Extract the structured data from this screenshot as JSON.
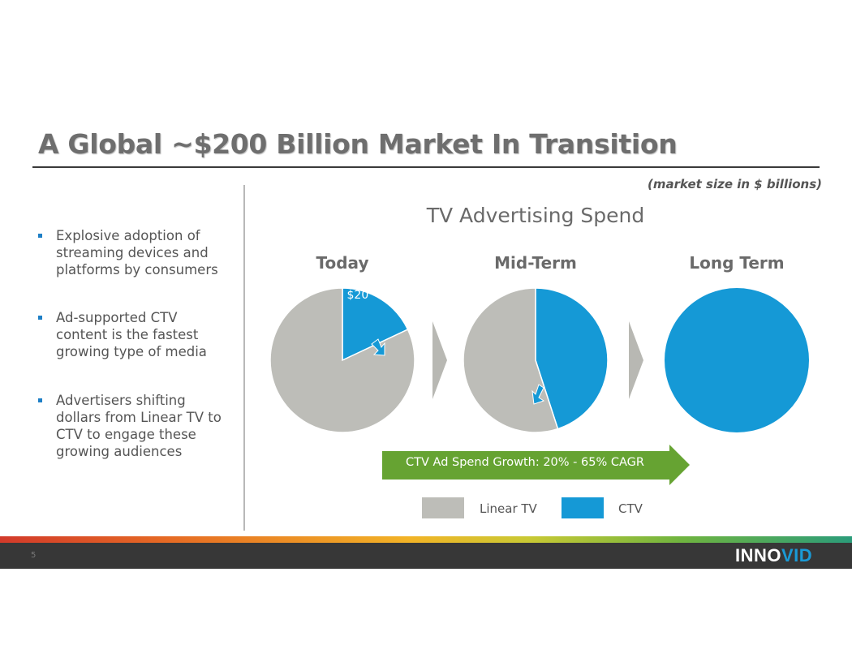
{
  "title": "A Global ~$200 Billion Market In Transition",
  "note": "(market size in $ billions)",
  "bullets": [
    "Explosive adoption of streaming devices and platforms by consumers",
    "Ad-supported CTV content is the fastest growing type of media",
    "Advertisers shifting dollars from Linear TV to CTV to engage these growing audiences"
  ],
  "colors": {
    "linear": "#bdbdb8",
    "ctv": "#1599d6",
    "arrow": "#66a332",
    "chevron": "#b8b8b3"
  },
  "chart_data": {
    "type": "pie",
    "title": "TV Advertising Spend",
    "charts": [
      {
        "label": "Today",
        "slices": [
          {
            "name": "Linear TV",
            "fraction": 0.82
          },
          {
            "name": "CTV",
            "fraction": 0.18,
            "label": "$20"
          }
        ]
      },
      {
        "label": "Mid-Term",
        "slices": [
          {
            "name": "Linear TV",
            "fraction": 0.55
          },
          {
            "name": "CTV",
            "fraction": 0.45
          }
        ]
      },
      {
        "label": "Long Term",
        "slices": [
          {
            "name": "Linear TV",
            "fraction": 0.0
          },
          {
            "name": "CTV",
            "fraction": 1.0
          }
        ]
      }
    ],
    "legend": [
      {
        "name": "Linear TV"
      },
      {
        "name": "CTV"
      }
    ],
    "annotation": "CTV Ad Spend Growth: 20% - 65% CAGR"
  },
  "footer": {
    "page_number": "5",
    "logo_text": "INNO",
    "logo_accent": "VID"
  }
}
